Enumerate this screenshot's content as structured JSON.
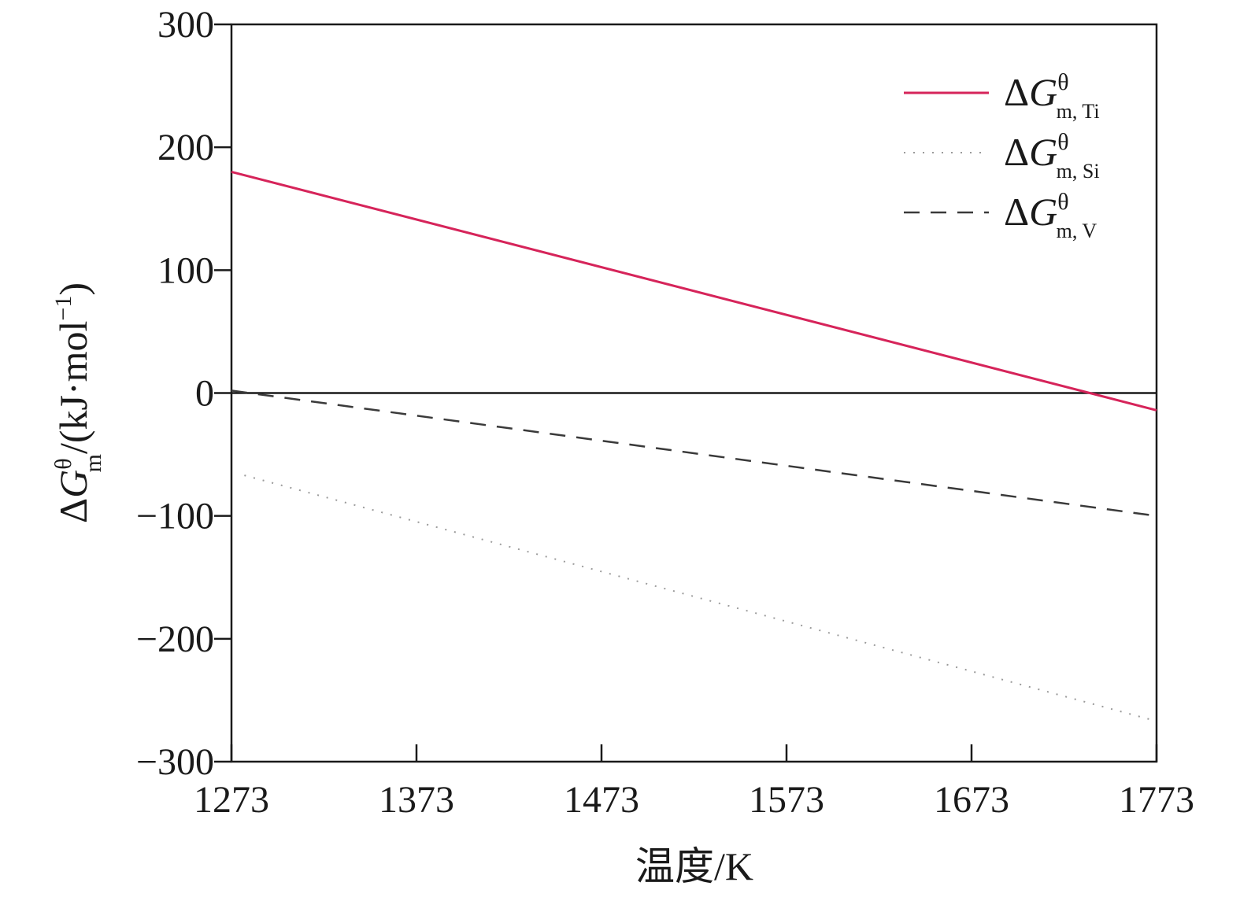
{
  "chart_data": {
    "type": "line",
    "xlabel": "温度/K",
    "ylabel": {
      "delta": "Δ",
      "symbol": "G",
      "superscript": "θ",
      "subscript": "m",
      "unit": "/(kJ·mol",
      "unit_exp": "−1",
      "unit_close": ")"
    },
    "xlim": [
      1273,
      1773
    ],
    "ylim": [
      -300,
      300
    ],
    "x_ticks": [
      1273,
      1373,
      1473,
      1573,
      1673,
      1773
    ],
    "x_tick_labels": [
      "1273",
      "1373",
      "1473",
      "1573",
      "1673",
      "1773"
    ],
    "y_ticks": [
      300,
      200,
      100,
      0,
      -100,
      -200,
      -300
    ],
    "y_tick_labels": [
      "300",
      "200",
      "100",
      "0",
      "−100",
      "−200",
      "−300"
    ],
    "zero_line": true,
    "grid": false,
    "legend_position": "top-right",
    "series": [
      {
        "name": "ΔG m, Ti",
        "legend": {
          "delta": "Δ",
          "symbol": "G",
          "superscript": "θ",
          "subscript": "m, Ti"
        },
        "style": "solid",
        "color": "#d6245a",
        "x": [
          1273,
          1773
        ],
        "y": [
          180,
          -14
        ]
      },
      {
        "name": "ΔG m, Si",
        "legend": {
          "delta": "Δ",
          "symbol": "G",
          "superscript": "θ",
          "subscript": "m, Si"
        },
        "style": "dotted",
        "color": "#9a9a9a",
        "x": [
          1280,
          1773
        ],
        "y": [
          -67,
          -267
        ]
      },
      {
        "name": "ΔG m, V",
        "legend": {
          "delta": "Δ",
          "symbol": "G",
          "superscript": "θ",
          "subscript": "m, V"
        },
        "style": "dashed",
        "color": "#3a3a3a",
        "x": [
          1273,
          1773
        ],
        "y": [
          2,
          -100
        ]
      }
    ]
  }
}
